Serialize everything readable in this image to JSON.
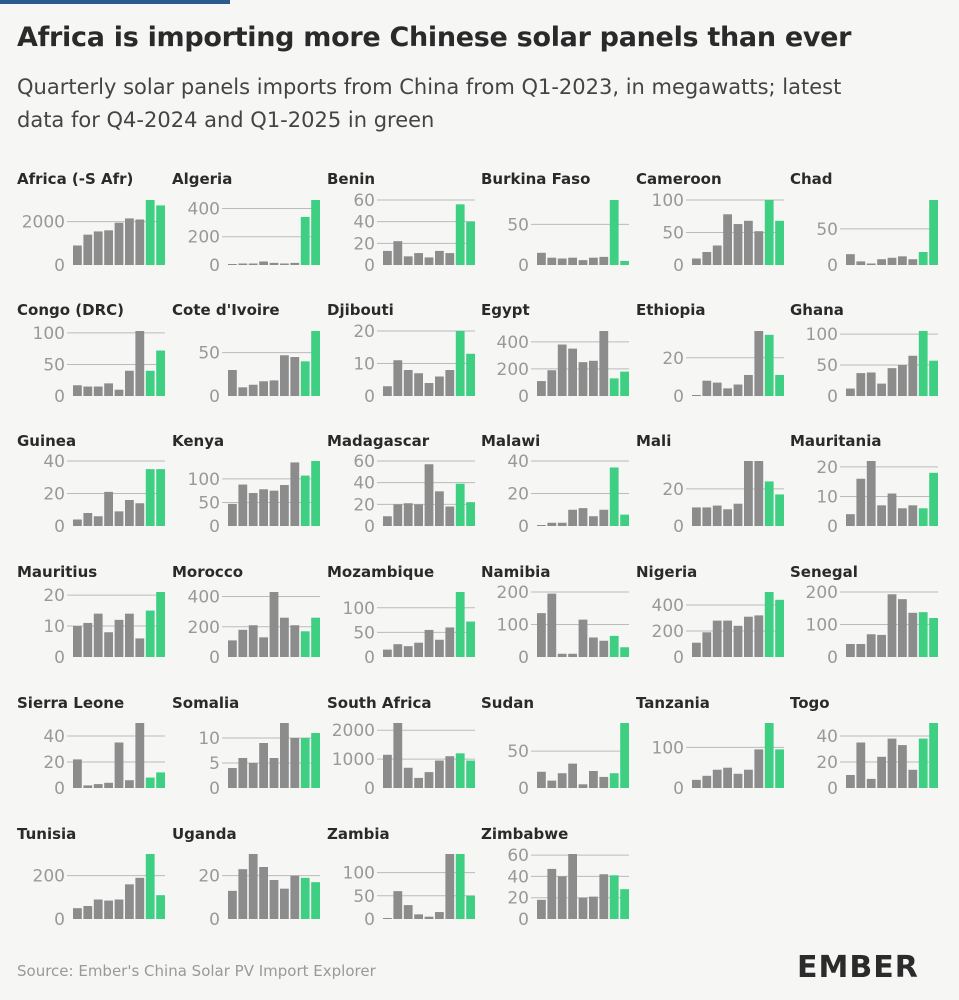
{
  "title": "Africa is importing more Chinese solar panels than ever",
  "subtitle_line1": "Quarterly solar panels imports from China from Q1-2023, in megawatts; latest",
  "subtitle_line2": "data for Q4-2024 and Q1-2025 in green",
  "source": "Source: Ember's China Solar PV Import Explorer",
  "logo_text": "EMBER",
  "colors": {
    "history": "#8c8c8c",
    "latest": "#3ecf82",
    "axis": "#999999",
    "grid": "#bbbbbb",
    "logo": "#2b2b2b"
  },
  "chart_data": [
    {
      "type": "bar",
      "title": "Africa (-S Afr)",
      "categories": [
        "Q1-2023",
        "Q2-2023",
        "Q3-2023",
        "Q4-2023",
        "Q1-2024",
        "Q2-2024",
        "Q3-2024",
        "Q4-2024",
        "Q1-2025"
      ],
      "values": [
        900,
        1400,
        1550,
        1600,
        1950,
        2150,
        2100,
        3000,
        2750
      ],
      "yticks": [
        0,
        2000
      ],
      "ylim": [
        0,
        3000
      ]
    },
    {
      "type": "bar",
      "title": "Algeria",
      "categories": [
        "Q1-2023",
        "Q2-2023",
        "Q3-2023",
        "Q4-2023",
        "Q1-2024",
        "Q2-2024",
        "Q3-2024",
        "Q4-2024",
        "Q1-2025"
      ],
      "values": [
        0,
        5,
        5,
        25,
        15,
        5,
        15,
        340,
        460
      ],
      "yticks": [
        0,
        200,
        400
      ],
      "ylim": [
        0,
        460
      ]
    },
    {
      "type": "bar",
      "title": "Benin",
      "categories": [
        "Q1-2023",
        "Q2-2023",
        "Q3-2023",
        "Q4-2023",
        "Q1-2024",
        "Q2-2024",
        "Q3-2024",
        "Q4-2024",
        "Q1-2025"
      ],
      "values": [
        13,
        22,
        8,
        11,
        7,
        13,
        11,
        56,
        40
      ],
      "yticks": [
        0,
        20,
        40,
        60
      ],
      "ylim": [
        0,
        60
      ]
    },
    {
      "type": "bar",
      "title": "Burkina Faso",
      "categories": [
        "Q1-2023",
        "Q2-2023",
        "Q3-2023",
        "Q4-2023",
        "Q1-2024",
        "Q2-2024",
        "Q3-2024",
        "Q4-2024",
        "Q1-2025"
      ],
      "values": [
        15,
        9,
        8,
        9,
        6,
        9,
        10,
        80,
        5
      ],
      "yticks": [
        0,
        50
      ],
      "ylim": [
        0,
        80
      ]
    },
    {
      "type": "bar",
      "title": "Cameroon",
      "categories": [
        "Q1-2023",
        "Q2-2023",
        "Q3-2023",
        "Q4-2023",
        "Q1-2024",
        "Q2-2024",
        "Q3-2024",
        "Q4-2024",
        "Q1-2025"
      ],
      "values": [
        10,
        20,
        30,
        78,
        63,
        68,
        52,
        100,
        68
      ],
      "yticks": [
        0,
        50,
        100
      ],
      "ylim": [
        0,
        100
      ]
    },
    {
      "type": "bar",
      "title": "Chad",
      "categories": [
        "Q1-2023",
        "Q2-2023",
        "Q3-2023",
        "Q4-2023",
        "Q1-2024",
        "Q2-2024",
        "Q3-2024",
        "Q4-2024",
        "Q1-2025"
      ],
      "values": [
        15,
        5,
        2,
        8,
        10,
        12,
        8,
        18,
        90
      ],
      "yticks": [
        0,
        50
      ],
      "ylim": [
        0,
        90
      ]
    },
    {
      "type": "bar",
      "title": "Congo (DRC)",
      "categories": [
        "Q1-2023",
        "Q2-2023",
        "Q3-2023",
        "Q4-2023",
        "Q1-2024",
        "Q2-2024",
        "Q3-2024",
        "Q4-2024",
        "Q1-2025"
      ],
      "values": [
        17,
        15,
        15,
        20,
        10,
        40,
        103,
        40,
        72
      ],
      "yticks": [
        0,
        50,
        100
      ],
      "ylim": [
        0,
        103
      ]
    },
    {
      "type": "bar",
      "title": "Cote d'Ivoire",
      "categories": [
        "Q1-2023",
        "Q2-2023",
        "Q3-2023",
        "Q4-2023",
        "Q1-2024",
        "Q2-2024",
        "Q3-2024",
        "Q4-2024",
        "Q1-2025"
      ],
      "values": [
        30,
        10,
        13,
        17,
        18,
        47,
        45,
        40,
        75
      ],
      "yticks": [
        0,
        50
      ],
      "ylim": [
        0,
        75
      ]
    },
    {
      "type": "bar",
      "title": "Djibouti",
      "categories": [
        "Q1-2023",
        "Q2-2023",
        "Q3-2023",
        "Q4-2023",
        "Q1-2024",
        "Q2-2024",
        "Q3-2024",
        "Q4-2024",
        "Q1-2025"
      ],
      "values": [
        3,
        11,
        8,
        7,
        4,
        6,
        8,
        20,
        13
      ],
      "yticks": [
        0,
        10,
        20
      ],
      "ylim": [
        0,
        20
      ]
    },
    {
      "type": "bar",
      "title": "Egypt",
      "categories": [
        "Q1-2023",
        "Q2-2023",
        "Q3-2023",
        "Q4-2023",
        "Q1-2024",
        "Q2-2024",
        "Q3-2024",
        "Q4-2024",
        "Q1-2025"
      ],
      "values": [
        110,
        190,
        380,
        350,
        250,
        260,
        480,
        130,
        180
      ],
      "yticks": [
        0,
        200,
        400
      ],
      "ylim": [
        0,
        480
      ]
    },
    {
      "type": "bar",
      "title": "Ethiopia",
      "categories": [
        "Q1-2023",
        "Q2-2023",
        "Q3-2023",
        "Q4-2023",
        "Q1-2024",
        "Q2-2024",
        "Q3-2024",
        "Q4-2024",
        "Q1-2025"
      ],
      "values": [
        0,
        8,
        7,
        4,
        6,
        11,
        34,
        32,
        11
      ],
      "yticks": [
        0,
        20
      ],
      "ylim": [
        0,
        34
      ]
    },
    {
      "type": "bar",
      "title": "Ghana",
      "categories": [
        "Q1-2023",
        "Q2-2023",
        "Q3-2023",
        "Q4-2023",
        "Q1-2024",
        "Q2-2024",
        "Q3-2024",
        "Q4-2024",
        "Q1-2025"
      ],
      "values": [
        12,
        37,
        38,
        20,
        45,
        50,
        65,
        105,
        57
      ],
      "yticks": [
        0,
        50,
        100
      ],
      "ylim": [
        0,
        105
      ]
    },
    {
      "type": "bar",
      "title": "Guinea",
      "categories": [
        "Q1-2023",
        "Q2-2023",
        "Q3-2023",
        "Q4-2023",
        "Q1-2024",
        "Q2-2024",
        "Q3-2024",
        "Q4-2024",
        "Q1-2025"
      ],
      "values": [
        4,
        8,
        6,
        21,
        9,
        16,
        14,
        35,
        35
      ],
      "yticks": [
        0,
        20,
        40
      ],
      "ylim": [
        0,
        40
      ]
    },
    {
      "type": "bar",
      "title": "Kenya",
      "categories": [
        "Q1-2023",
        "Q2-2023",
        "Q3-2023",
        "Q4-2023",
        "Q1-2024",
        "Q2-2024",
        "Q3-2024",
        "Q4-2024",
        "Q1-2025"
      ],
      "values": [
        47,
        88,
        70,
        78,
        75,
        87,
        135,
        107,
        138
      ],
      "yticks": [
        0,
        50,
        100
      ],
      "ylim": [
        0,
        138
      ]
    },
    {
      "type": "bar",
      "title": "Madagascar",
      "categories": [
        "Q1-2023",
        "Q2-2023",
        "Q3-2023",
        "Q4-2023",
        "Q1-2024",
        "Q2-2024",
        "Q3-2024",
        "Q4-2024",
        "Q1-2025"
      ],
      "values": [
        9,
        20,
        21,
        20,
        57,
        32,
        18,
        39,
        22
      ],
      "yticks": [
        0,
        20,
        40,
        60
      ],
      "ylim": [
        0,
        60
      ]
    },
    {
      "type": "bar",
      "title": "Malawi",
      "categories": [
        "Q1-2023",
        "Q2-2023",
        "Q3-2023",
        "Q4-2023",
        "Q1-2024",
        "Q2-2024",
        "Q3-2024",
        "Q4-2024",
        "Q1-2025"
      ],
      "values": [
        0,
        2,
        2,
        10,
        11,
        6,
        10,
        36,
        7
      ],
      "yticks": [
        0,
        20,
        40
      ],
      "ylim": [
        0,
        40
      ]
    },
    {
      "type": "bar",
      "title": "Mali",
      "categories": [
        "Q1-2023",
        "Q2-2023",
        "Q3-2023",
        "Q4-2023",
        "Q1-2024",
        "Q2-2024",
        "Q3-2024",
        "Q4-2024",
        "Q1-2025"
      ],
      "values": [
        10,
        10,
        11,
        9,
        12,
        35,
        35,
        24,
        17
      ],
      "yticks": [
        0,
        20
      ],
      "ylim": [
        0,
        35
      ]
    },
    {
      "type": "bar",
      "title": "Mauritania",
      "categories": [
        "Q1-2023",
        "Q2-2023",
        "Q3-2023",
        "Q4-2023",
        "Q1-2024",
        "Q2-2024",
        "Q3-2024",
        "Q4-2024",
        "Q1-2025"
      ],
      "values": [
        4,
        16,
        22,
        7,
        11,
        6,
        7,
        6,
        18
      ],
      "yticks": [
        0,
        10,
        20
      ],
      "ylim": [
        0,
        22
      ]
    },
    {
      "type": "bar",
      "title": "Mauritius",
      "categories": [
        "Q1-2023",
        "Q2-2023",
        "Q3-2023",
        "Q4-2023",
        "Q1-2024",
        "Q2-2024",
        "Q3-2024",
        "Q4-2024",
        "Q1-2025"
      ],
      "values": [
        10,
        11,
        14,
        8,
        12,
        14,
        6,
        15,
        21
      ],
      "yticks": [
        0,
        10,
        20
      ],
      "ylim": [
        0,
        21
      ]
    },
    {
      "type": "bar",
      "title": "Morocco",
      "categories": [
        "Q1-2023",
        "Q2-2023",
        "Q3-2023",
        "Q4-2023",
        "Q1-2024",
        "Q2-2024",
        "Q3-2024",
        "Q4-2024",
        "Q1-2025"
      ],
      "values": [
        110,
        180,
        210,
        130,
        430,
        260,
        210,
        170,
        260
      ],
      "yticks": [
        0,
        200,
        400
      ],
      "ylim": [
        0,
        430
      ]
    },
    {
      "type": "bar",
      "title": "Mozambique",
      "categories": [
        "Q1-2023",
        "Q2-2023",
        "Q3-2023",
        "Q4-2023",
        "Q1-2024",
        "Q2-2024",
        "Q3-2024",
        "Q4-2024",
        "Q1-2025"
      ],
      "values": [
        15,
        26,
        22,
        29,
        55,
        35,
        60,
        132,
        72
      ],
      "yticks": [
        0,
        50,
        100
      ],
      "ylim": [
        0,
        132
      ]
    },
    {
      "type": "bar",
      "title": "Namibia",
      "categories": [
        "Q1-2023",
        "Q2-2023",
        "Q3-2023",
        "Q4-2023",
        "Q1-2024",
        "Q2-2024",
        "Q3-2024",
        "Q4-2024",
        "Q1-2025"
      ],
      "values": [
        135,
        195,
        10,
        10,
        115,
        60,
        50,
        65,
        30
      ],
      "yticks": [
        0,
        100,
        200
      ],
      "ylim": [
        0,
        200
      ]
    },
    {
      "type": "bar",
      "title": "Nigeria",
      "categories": [
        "Q1-2023",
        "Q2-2023",
        "Q3-2023",
        "Q4-2023",
        "Q1-2024",
        "Q2-2024",
        "Q3-2024",
        "Q4-2024",
        "Q1-2025"
      ],
      "values": [
        110,
        190,
        280,
        280,
        240,
        310,
        320,
        500,
        440
      ],
      "yticks": [
        0,
        200,
        400
      ],
      "ylim": [
        0,
        500
      ]
    },
    {
      "type": "bar",
      "title": "Senegal",
      "categories": [
        "Q1-2023",
        "Q2-2023",
        "Q3-2023",
        "Q4-2023",
        "Q1-2024",
        "Q2-2024",
        "Q3-2024",
        "Q4-2024",
        "Q1-2025"
      ],
      "values": [
        40,
        40,
        70,
        68,
        193,
        178,
        136,
        138,
        120
      ],
      "yticks": [
        0,
        100,
        200
      ],
      "ylim": [
        0,
        200
      ]
    },
    {
      "type": "bar",
      "title": "Sierra Leone",
      "categories": [
        "Q1-2023",
        "Q2-2023",
        "Q3-2023",
        "Q4-2023",
        "Q1-2024",
        "Q2-2024",
        "Q3-2024",
        "Q4-2024",
        "Q1-2025"
      ],
      "values": [
        22,
        2,
        3,
        4,
        35,
        6,
        50,
        8,
        12
      ],
      "yticks": [
        0,
        20,
        40
      ],
      "ylim": [
        0,
        50
      ]
    },
    {
      "type": "bar",
      "title": "Somalia",
      "categories": [
        "Q1-2023",
        "Q2-2023",
        "Q3-2023",
        "Q4-2023",
        "Q1-2024",
        "Q2-2024",
        "Q3-2024",
        "Q4-2024",
        "Q1-2025"
      ],
      "values": [
        4,
        6,
        5,
        9,
        6,
        13,
        10,
        10,
        11
      ],
      "yticks": [
        0,
        5,
        10
      ],
      "ylim": [
        0,
        13
      ]
    },
    {
      "type": "bar",
      "title": "South Africa",
      "categories": [
        "Q1-2023",
        "Q2-2023",
        "Q3-2023",
        "Q4-2023",
        "Q1-2024",
        "Q2-2024",
        "Q3-2024",
        "Q4-2024",
        "Q1-2025"
      ],
      "values": [
        1150,
        2250,
        700,
        350,
        550,
        950,
        1100,
        1200,
        950
      ],
      "yticks": [
        0,
        1000,
        2000
      ],
      "ylim": [
        0,
        2250
      ]
    },
    {
      "type": "bar",
      "title": "Sudan",
      "categories": [
        "Q1-2023",
        "Q2-2023",
        "Q3-2023",
        "Q4-2023",
        "Q1-2024",
        "Q2-2024",
        "Q3-2024",
        "Q4-2024",
        "Q1-2025"
      ],
      "values": [
        22,
        10,
        20,
        33,
        5,
        23,
        15,
        20,
        88
      ],
      "yticks": [
        0,
        50
      ],
      "ylim": [
        0,
        88
      ]
    },
    {
      "type": "bar",
      "title": "Tanzania",
      "categories": [
        "Q1-2023",
        "Q2-2023",
        "Q3-2023",
        "Q4-2023",
        "Q1-2024",
        "Q2-2024",
        "Q3-2024",
        "Q4-2024",
        "Q1-2025"
      ],
      "values": [
        20,
        30,
        45,
        50,
        35,
        45,
        95,
        160,
        95
      ],
      "yticks": [
        0,
        100
      ],
      "ylim": [
        0,
        160
      ]
    },
    {
      "type": "bar",
      "title": "Togo",
      "categories": [
        "Q1-2023",
        "Q2-2023",
        "Q3-2023",
        "Q4-2023",
        "Q1-2024",
        "Q2-2024",
        "Q3-2024",
        "Q4-2024",
        "Q1-2025"
      ],
      "values": [
        10,
        35,
        7,
        24,
        38,
        33,
        14,
        38,
        50
      ],
      "yticks": [
        0,
        20,
        40
      ],
      "ylim": [
        0,
        50
      ]
    },
    {
      "type": "bar",
      "title": "Tunisia",
      "categories": [
        "Q1-2023",
        "Q2-2023",
        "Q3-2023",
        "Q4-2023",
        "Q1-2024",
        "Q2-2024",
        "Q3-2024",
        "Q4-2024",
        "Q1-2025"
      ],
      "values": [
        50,
        60,
        90,
        85,
        90,
        160,
        190,
        300,
        110
      ],
      "yticks": [
        0,
        200
      ],
      "ylim": [
        0,
        300
      ]
    },
    {
      "type": "bar",
      "title": "Uganda",
      "categories": [
        "Q1-2023",
        "Q2-2023",
        "Q3-2023",
        "Q4-2023",
        "Q1-2024",
        "Q2-2024",
        "Q3-2024",
        "Q4-2024",
        "Q1-2025"
      ],
      "values": [
        13,
        23,
        30,
        24,
        18,
        14,
        20,
        19,
        17
      ],
      "yticks": [
        0,
        20
      ],
      "ylim": [
        0,
        30
      ]
    },
    {
      "type": "bar",
      "title": "Zambia",
      "categories": [
        "Q1-2023",
        "Q2-2023",
        "Q3-2023",
        "Q4-2023",
        "Q1-2024",
        "Q2-2024",
        "Q3-2024",
        "Q4-2024",
        "Q1-2025"
      ],
      "values": [
        0,
        60,
        30,
        10,
        5,
        15,
        140,
        140,
        50
      ],
      "yticks": [
        0,
        50,
        100
      ],
      "ylim": [
        0,
        140
      ]
    },
    {
      "type": "bar",
      "title": "Zimbabwe",
      "categories": [
        "Q1-2023",
        "Q2-2023",
        "Q3-2023",
        "Q4-2023",
        "Q1-2024",
        "Q2-2024",
        "Q3-2024",
        "Q4-2024",
        "Q1-2025"
      ],
      "values": [
        18,
        47,
        40,
        61,
        20,
        21,
        42,
        41,
        28
      ],
      "yticks": [
        0,
        20,
        40,
        60
      ],
      "ylim": [
        0,
        61
      ]
    }
  ]
}
